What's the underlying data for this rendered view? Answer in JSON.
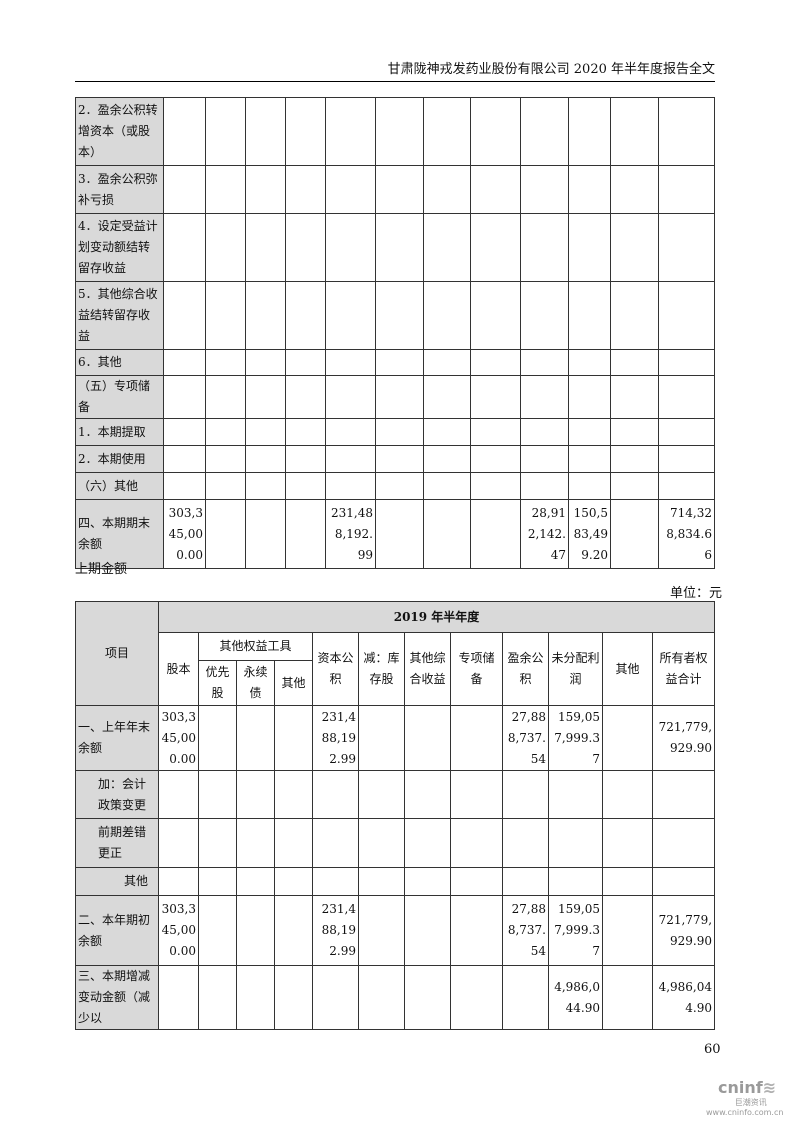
{
  "header": {
    "title": "甘肃陇神戎发药业股份有限公司 2020 年半年度报告全文"
  },
  "table1": {
    "rows": [
      {
        "label": "2．盈余公积转增资本（或股本）",
        "values": [
          "",
          "",
          "",
          "",
          "",
          "",
          "",
          "",
          "",
          "",
          "",
          ""
        ]
      },
      {
        "label": "3．盈余公积弥补亏损",
        "values": [
          "",
          "",
          "",
          "",
          "",
          "",
          "",
          "",
          "",
          "",
          "",
          ""
        ]
      },
      {
        "label": "4．设定受益计划变动额结转留存收益",
        "values": [
          "",
          "",
          "",
          "",
          "",
          "",
          "",
          "",
          "",
          "",
          "",
          ""
        ]
      },
      {
        "label": "5．其他综合收益结转留存收益",
        "values": [
          "",
          "",
          "",
          "",
          "",
          "",
          "",
          "",
          "",
          "",
          "",
          ""
        ]
      },
      {
        "label": "6．其他",
        "values": [
          "",
          "",
          "",
          "",
          "",
          "",
          "",
          "",
          "",
          "",
          "",
          ""
        ]
      },
      {
        "label": "（五）专项储备",
        "values": [
          "",
          "",
          "",
          "",
          "",
          "",
          "",
          "",
          "",
          "",
          "",
          ""
        ]
      },
      {
        "label": "1．本期提取",
        "values": [
          "",
          "",
          "",
          "",
          "",
          "",
          "",
          "",
          "",
          "",
          "",
          ""
        ]
      },
      {
        "label": "2．本期使用",
        "values": [
          "",
          "",
          "",
          "",
          "",
          "",
          "",
          "",
          "",
          "",
          "",
          ""
        ]
      },
      {
        "label": "（六）其他",
        "values": [
          "",
          "",
          "",
          "",
          "",
          "",
          "",
          "",
          "",
          "",
          "",
          ""
        ]
      },
      {
        "label": "四、本期期末余额",
        "values": [
          "303,345,000.00",
          "",
          "",
          "",
          "231,488,192.99",
          "",
          "",
          "",
          "28,912,142.47",
          "150,583,499.20",
          "",
          "714,328,834.66"
        ]
      }
    ]
  },
  "section_title": "上期金额",
  "unit": "单位：元",
  "table2": {
    "period": "2019 年半年度",
    "headers": {
      "item": "项目",
      "share": "股本",
      "other_equity": "其他权益工具",
      "preferred": "优先股",
      "perpetual": "永续债",
      "other_eq_other": "其他",
      "capital_reserve": "资本公积",
      "treasury": "减：库存股",
      "oci": "其他综合收益",
      "special": "专项储备",
      "surplus": "盈余公积",
      "undistributed": "未分配利润",
      "other": "其他",
      "total": "所有者权益合计"
    },
    "rows": [
      {
        "label": "一、上年年末余额",
        "values": [
          "303,345,000.00",
          "",
          "",
          "",
          "231,488,192.99",
          "",
          "",
          "",
          "27,888,737.54",
          "159,057,999.37",
          "",
          "721,779,929.90"
        ]
      },
      {
        "label": "加：会计政策变更",
        "indent": true,
        "values": [
          "",
          "",
          "",
          "",
          "",
          "",
          "",
          "",
          "",
          "",
          "",
          ""
        ]
      },
      {
        "label": "前期差错更正",
        "indent": true,
        "values": [
          "",
          "",
          "",
          "",
          "",
          "",
          "",
          "",
          "",
          "",
          "",
          ""
        ]
      },
      {
        "label": "其他",
        "indent": true,
        "values": [
          "",
          "",
          "",
          "",
          "",
          "",
          "",
          "",
          "",
          "",
          "",
          ""
        ]
      },
      {
        "label": "二、本年期初余额",
        "values": [
          "303,345,000.00",
          "",
          "",
          "",
          "231,488,192.99",
          "",
          "",
          "",
          "27,888,737.54",
          "159,057,999.37",
          "",
          "721,779,929.90"
        ]
      },
      {
        "label": "三、本期增减变动金额（减少以",
        "values": [
          "",
          "",
          "",
          "",
          "",
          "",
          "",
          "",
          "",
          "4,986,044.90",
          "",
          "4,986,044.90"
        ]
      }
    ]
  },
  "page_number": "60",
  "logo": {
    "name": "cninf",
    "cn": "巨潮资讯",
    "url": "www.cninfo.com.cn"
  }
}
